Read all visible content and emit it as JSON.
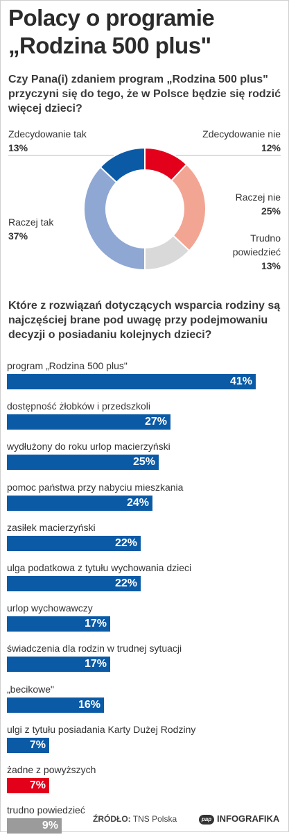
{
  "title_line1": "Polacy o programie",
  "title_line2": "„Rodzina 500 plus\"",
  "footer": {
    "source_label": "ŹRÓDŁO:",
    "source": "TNS Polska",
    "brand_logo": "pap",
    "brand": "INFOGRAFIKA"
  },
  "colors": {
    "dark_blue": "#0a5aa6",
    "light_blue": "#8fa7d3",
    "red": "#e3001b",
    "salmon": "#f2a592",
    "gray": "#d9d9d9",
    "bar_gray": "#9b9b9b"
  },
  "chart_data": [
    {
      "type": "pie",
      "title": "Czy Pana(i) zdaniem program „Rodzina 500 plus\" przyczyni się do tego, że w Polsce będzie się rodzić więcej dzieci?",
      "categories": [
        "Zdecydowanie nie",
        "Raczej nie",
        "Trudno powiedzieć",
        "Raczej tak",
        "Zdecydowanie tak"
      ],
      "values": [
        12,
        25,
        13,
        37,
        13
      ],
      "value_labels": [
        "12%",
        "25%",
        "13%",
        "37%",
        "13%"
      ],
      "colors": [
        "#e3001b",
        "#f2a592",
        "#d9d9d9",
        "#8fa7d3",
        "#0a5aa6"
      ],
      "label_lines": [
        [
          "Zdecydowanie nie"
        ],
        [
          "Raczej nie"
        ],
        [
          "Trudno",
          "powiedzieć"
        ],
        [
          "Raczej tak"
        ],
        [
          "Zdecydowanie tak"
        ]
      ]
    },
    {
      "type": "bar",
      "orientation": "horizontal",
      "title": "Które z rozwiązań dotyczących wsparcia rodziny są najczęściej brane pod uwagę przy podejmowaniu decyzji o posiadaniu kolejnych dzieci?",
      "categories": [
        "program „Rodzina 500 plus\"",
        "dostępność żłobków i przedszkoli",
        "wydłużony do roku urlop macierzyński",
        "pomoc państwa przy nabyciu mieszkania",
        "zasiłek macierzyński",
        "ulga podatkowa z tytułu wychowania dzieci",
        "urlop wychowawczy",
        "świadczenia dla rodzin w trudnej sytuacji",
        "„becikowe\"",
        "ulgi z tytułu posiadania Karty Dużej Rodziny",
        "żadne z powyższych",
        "trudno powiedzieć"
      ],
      "values": [
        41,
        27,
        25,
        24,
        22,
        22,
        17,
        17,
        16,
        7,
        7,
        9
      ],
      "value_labels": [
        "41%",
        "27%",
        "25%",
        "24%",
        "22%",
        "22%",
        "17%",
        "17%",
        "16%",
        "7%",
        "7%",
        "9%"
      ],
      "colors": [
        "#0a5aa6",
        "#0a5aa6",
        "#0a5aa6",
        "#0a5aa6",
        "#0a5aa6",
        "#0a5aa6",
        "#0a5aa6",
        "#0a5aa6",
        "#0a5aa6",
        "#0a5aa6",
        "#e3001b",
        "#9b9b9b"
      ]
    }
  ]
}
